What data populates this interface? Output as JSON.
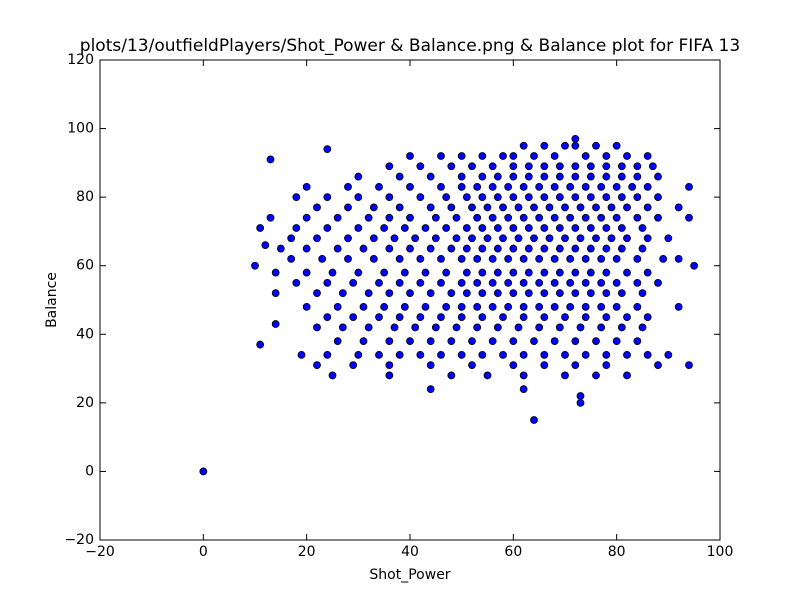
{
  "chart_data": {
    "type": "scatter",
    "title": "plots/13/outfieldPlayers/Shot_Power & Balance.png & Balance plot for FIFA 13",
    "xlabel": "Shot_Power",
    "ylabel": "Balance",
    "color": "#0000ff",
    "xlim": [
      -20,
      100
    ],
    "ylim": [
      -20,
      120
    ],
    "xticks": [
      {
        "value": -20,
        "label": "−20"
      },
      0,
      20,
      40,
      60,
      80,
      100
    ],
    "yticks": [
      {
        "value": -20,
        "label": "−20"
      },
      0,
      20,
      40,
      60,
      80,
      100,
      120
    ],
    "x": [
      62,
      66,
      70,
      72,
      76,
      80,
      40,
      46,
      50,
      54,
      58,
      60,
      64,
      68,
      74,
      78,
      82,
      86,
      36,
      42,
      48,
      52,
      56,
      60,
      63,
      66,
      69,
      72,
      75,
      78,
      81,
      84,
      87,
      30,
      38,
      44,
      50,
      54,
      57,
      60,
      63,
      66,
      69,
      72,
      75,
      78,
      81,
      84,
      88,
      20,
      28,
      34,
      40,
      46,
      50,
      53,
      56,
      59,
      62,
      65,
      68,
      71,
      74,
      77,
      80,
      83,
      86,
      94,
      18,
      24,
      30,
      36,
      42,
      47,
      51,
      54,
      57,
      60,
      63,
      66,
      69,
      72,
      75,
      78,
      81,
      84,
      88,
      22,
      28,
      33,
      38,
      44,
      48,
      52,
      55,
      58,
      61,
      64,
      67,
      70,
      73,
      76,
      79,
      82,
      86,
      92,
      13,
      20,
      26,
      32,
      36,
      40,
      45,
      49,
      53,
      56,
      59,
      62,
      65,
      68,
      71,
      74,
      77,
      80,
      84,
      88,
      94,
      11,
      18,
      24,
      30,
      35,
      39,
      43,
      47,
      51,
      54,
      57,
      60,
      63,
      66,
      69,
      72,
      75,
      78,
      81,
      85,
      17,
      22,
      28,
      33,
      37,
      41,
      45,
      49,
      52,
      55,
      58,
      61,
      64,
      67,
      70,
      73,
      76,
      79,
      82,
      86,
      90,
      15,
      20,
      26,
      31,
      36,
      40,
      44,
      48,
      51,
      54,
      57,
      60,
      63,
      66,
      69,
      72,
      75,
      78,
      81,
      85,
      17,
      23,
      28,
      33,
      38,
      42,
      46,
      50,
      53,
      56,
      59,
      62,
      65,
      68,
      71,
      74,
      77,
      80,
      84,
      89,
      92,
      10,
      95,
      14,
      20,
      25,
      30,
      35,
      39,
      43,
      47,
      51,
      54,
      57,
      60,
      63,
      66,
      69,
      72,
      75,
      78,
      82,
      86,
      18,
      24,
      29,
      34,
      38,
      42,
      46,
      50,
      53,
      56,
      59,
      62,
      65,
      68,
      71,
      74,
      77,
      80,
      84,
      88,
      14,
      22,
      27,
      32,
      36,
      40,
      44,
      48,
      51,
      54,
      57,
      60,
      63,
      66,
      69,
      72,
      75,
      78,
      81,
      85,
      20,
      26,
      31,
      35,
      39,
      43,
      47,
      50,
      53,
      56,
      59,
      62,
      65,
      68,
      71,
      74,
      77,
      80,
      84,
      92,
      24,
      29,
      34,
      38,
      42,
      46,
      50,
      54,
      58,
      62,
      66,
      70,
      74,
      78,
      82,
      86,
      22,
      27,
      32,
      37,
      41,
      45,
      49,
      53,
      57,
      61,
      65,
      69,
      73,
      77,
      81,
      85,
      26,
      31,
      36,
      40,
      44,
      48,
      52,
      56,
      60,
      64,
      68,
      72,
      76,
      80,
      84,
      19,
      24,
      30,
      34,
      38,
      42,
      46,
      50,
      54,
      58,
      62,
      66,
      70,
      74,
      78,
      82,
      86,
      90,
      22,
      29,
      36,
      44,
      52,
      60,
      66,
      72,
      78,
      88,
      94,
      25,
      36,
      48,
      55,
      62,
      70,
      76,
      82,
      0,
      13,
      24,
      64,
      73,
      73,
      44,
      62,
      11,
      14,
      72,
      12
    ],
    "values": [
      95,
      95,
      95,
      95,
      95,
      95,
      92,
      92,
      92,
      92,
      92,
      92,
      92,
      92,
      92,
      92,
      92,
      92,
      89,
      89,
      89,
      89,
      89,
      89,
      89,
      89,
      89,
      89,
      89,
      89,
      89,
      89,
      89,
      86,
      86,
      86,
      86,
      86,
      86,
      86,
      86,
      86,
      86,
      86,
      86,
      86,
      86,
      86,
      86,
      83,
      83,
      83,
      83,
      83,
      83,
      83,
      83,
      83,
      83,
      83,
      83,
      83,
      83,
      83,
      83,
      83,
      83,
      83,
      80,
      80,
      80,
      80,
      80,
      80,
      80,
      80,
      80,
      80,
      80,
      80,
      80,
      80,
      80,
      80,
      80,
      80,
      80,
      77,
      77,
      77,
      77,
      77,
      77,
      77,
      77,
      77,
      77,
      77,
      77,
      77,
      77,
      77,
      77,
      77,
      77,
      77,
      74,
      74,
      74,
      74,
      74,
      74,
      74,
      74,
      74,
      74,
      74,
      74,
      74,
      74,
      74,
      74,
      74,
      74,
      74,
      74,
      74,
      71,
      71,
      71,
      71,
      71,
      71,
      71,
      71,
      71,
      71,
      71,
      71,
      71,
      71,
      71,
      71,
      71,
      71,
      71,
      71,
      68,
      68,
      68,
      68,
      68,
      68,
      68,
      68,
      68,
      68,
      68,
      68,
      68,
      68,
      68,
      68,
      68,
      68,
      68,
      68,
      68,
      65,
      65,
      65,
      65,
      65,
      65,
      65,
      65,
      65,
      65,
      65,
      65,
      65,
      65,
      65,
      65,
      65,
      65,
      65,
      65,
      62,
      62,
      62,
      62,
      62,
      62,
      62,
      62,
      62,
      62,
      62,
      62,
      62,
      62,
      62,
      62,
      62,
      62,
      62,
      62,
      62,
      60,
      60,
      58,
      58,
      58,
      58,
      58,
      58,
      58,
      58,
      58,
      58,
      58,
      58,
      58,
      58,
      58,
      58,
      58,
      58,
      58,
      58,
      55,
      55,
      55,
      55,
      55,
      55,
      55,
      55,
      55,
      55,
      55,
      55,
      55,
      55,
      55,
      55,
      55,
      55,
      55,
      55,
      52,
      52,
      52,
      52,
      52,
      52,
      52,
      52,
      52,
      52,
      52,
      52,
      52,
      52,
      52,
      52,
      52,
      52,
      52,
      52,
      48,
      48,
      48,
      48,
      48,
      48,
      48,
      48,
      48,
      48,
      48,
      48,
      48,
      48,
      48,
      48,
      48,
      48,
      48,
      48,
      45,
      45,
      45,
      45,
      45,
      45,
      45,
      45,
      45,
      45,
      45,
      45,
      45,
      45,
      45,
      45,
      42,
      42,
      42,
      42,
      42,
      42,
      42,
      42,
      42,
      42,
      42,
      42,
      42,
      42,
      42,
      42,
      38,
      38,
      38,
      38,
      38,
      38,
      38,
      38,
      38,
      38,
      38,
      38,
      38,
      38,
      38,
      34,
      34,
      34,
      34,
      34,
      34,
      34,
      34,
      34,
      34,
      34,
      34,
      34,
      34,
      34,
      34,
      34,
      34,
      31,
      31,
      31,
      31,
      31,
      31,
      31,
      31,
      31,
      31,
      31,
      28,
      28,
      28,
      28,
      28,
      28,
      28,
      28,
      0,
      91,
      94,
      15,
      20,
      22,
      24,
      24,
      37,
      43,
      97,
      66
    ]
  }
}
